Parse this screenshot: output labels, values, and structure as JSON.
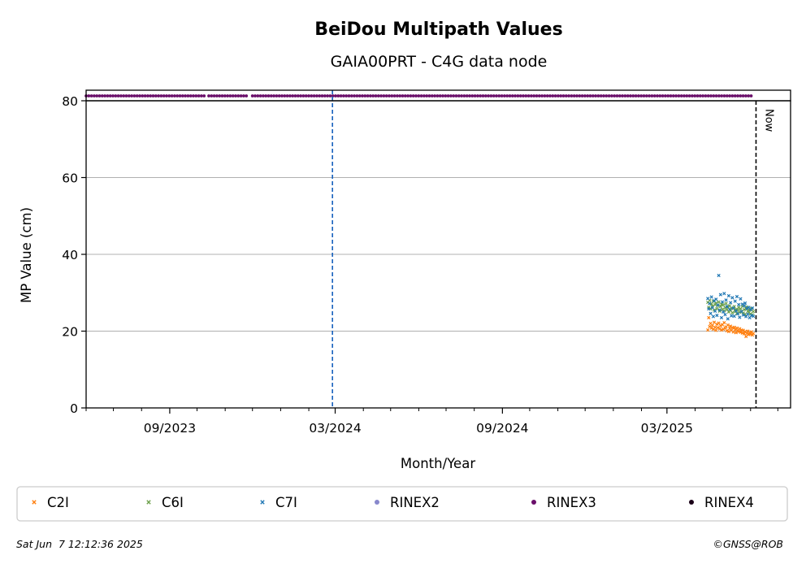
{
  "chart_data": {
    "type": "scatter",
    "title": "BeiDou Multipath Values",
    "subtitle": "GAIA00PRT - C4G data node",
    "xlabel": "Month/Year",
    "ylabel": "MP Value (cm)",
    "xlim": [
      "2023-06-01",
      "2025-07-15"
    ],
    "ylim": [
      0,
      80
    ],
    "yticks": [
      0,
      20,
      40,
      60,
      80
    ],
    "xticks": [
      {
        "date": "2023-09-01",
        "label": "09/2023"
      },
      {
        "date": "2024-03-01",
        "label": "03/2024"
      },
      {
        "date": "2024-09-01",
        "label": "09/2024"
      },
      {
        "date": "2025-03-01",
        "label": "03/2025"
      }
    ],
    "grid": "y",
    "legend_position": "bottom",
    "marked_date": "2024-02-27",
    "now": {
      "date": "2025-06-07",
      "label": "Now"
    },
    "rinex_strip": {
      "series": "RINEX3",
      "ranges": [
        [
          "2023-06-01",
          "2023-10-10"
        ],
        [
          "2023-10-14",
          "2023-11-25"
        ],
        [
          "2023-12-01",
          "2025-06-04"
        ]
      ]
    },
    "series": [
      {
        "name": "C2I",
        "color": "#ff7f0e",
        "marker": "x",
        "points": [
          [
            "2025-04-15",
            20.3
          ],
          [
            "2025-04-16",
            23.5
          ],
          [
            "2025-04-17",
            21.2
          ],
          [
            "2025-04-18",
            22.0
          ],
          [
            "2025-04-19",
            20.8
          ],
          [
            "2025-04-20",
            21.5
          ],
          [
            "2025-04-21",
            20.5
          ],
          [
            "2025-04-22",
            22.3
          ],
          [
            "2025-04-23",
            21.0
          ],
          [
            "2025-04-24",
            20.2
          ],
          [
            "2025-04-25",
            21.8
          ],
          [
            "2025-04-26",
            20.9
          ],
          [
            "2025-04-27",
            22.1
          ],
          [
            "2025-04-28",
            20.6
          ],
          [
            "2025-04-29",
            21.4
          ],
          [
            "2025-04-30",
            20.3
          ],
          [
            "2025-05-01",
            21.7
          ],
          [
            "2025-05-02",
            20.5
          ],
          [
            "2025-05-03",
            22.2
          ],
          [
            "2025-05-04",
            20.8
          ],
          [
            "2025-05-05",
            21.1
          ],
          [
            "2025-05-06",
            20.1
          ],
          [
            "2025-05-07",
            21.6
          ],
          [
            "2025-05-08",
            19.9
          ],
          [
            "2025-05-09",
            20.7
          ],
          [
            "2025-05-10",
            21.3
          ],
          [
            "2025-05-11",
            20.2
          ],
          [
            "2025-05-12",
            20.9
          ],
          [
            "2025-05-13",
            19.8
          ],
          [
            "2025-05-14",
            21.0
          ],
          [
            "2025-05-15",
            20.4
          ],
          [
            "2025-05-16",
            19.6
          ],
          [
            "2025-05-17",
            20.8
          ],
          [
            "2025-05-18",
            20.1
          ],
          [
            "2025-05-19",
            19.9
          ],
          [
            "2025-05-20",
            20.6
          ],
          [
            "2025-05-21",
            19.7
          ],
          [
            "2025-05-22",
            20.3
          ],
          [
            "2025-05-23",
            19.5
          ],
          [
            "2025-05-24",
            20.2
          ],
          [
            "2025-05-25",
            19.3
          ],
          [
            "2025-05-26",
            19.9
          ],
          [
            "2025-05-27",
            18.6
          ],
          [
            "2025-05-28",
            19.4
          ],
          [
            "2025-05-29",
            20.0
          ],
          [
            "2025-05-30",
            19.1
          ],
          [
            "2025-05-31",
            19.6
          ],
          [
            "2025-06-01",
            19.2
          ],
          [
            "2025-06-02",
            19.8
          ],
          [
            "2025-06-03",
            19.0
          ],
          [
            "2025-06-04",
            19.4
          ]
        ]
      },
      {
        "name": "C6I",
        "color": "#6ca04a",
        "marker": "x",
        "points": [
          [
            "2025-04-15",
            27.5
          ],
          [
            "2025-04-16",
            26.2
          ],
          [
            "2025-04-17",
            28.0
          ],
          [
            "2025-04-18",
            25.8
          ],
          [
            "2025-04-19",
            27.1
          ],
          [
            "2025-04-20",
            26.5
          ],
          [
            "2025-04-21",
            27.8
          ],
          [
            "2025-04-22",
            25.5
          ],
          [
            "2025-04-23",
            26.9
          ],
          [
            "2025-04-24",
            27.3
          ],
          [
            "2025-04-25",
            25.9
          ],
          [
            "2025-04-26",
            26.7
          ],
          [
            "2025-04-27",
            27.6
          ],
          [
            "2025-04-28",
            25.2
          ],
          [
            "2025-04-29",
            26.4
          ],
          [
            "2025-04-30",
            27.0
          ],
          [
            "2025-05-01",
            25.7
          ],
          [
            "2025-05-02",
            26.8
          ],
          [
            "2025-05-03",
            25.3
          ],
          [
            "2025-05-04",
            26.1
          ],
          [
            "2025-05-05",
            27.2
          ],
          [
            "2025-05-06",
            25.6
          ],
          [
            "2025-05-07",
            26.3
          ],
          [
            "2025-05-08",
            25.0
          ],
          [
            "2025-05-09",
            26.6
          ],
          [
            "2025-05-10",
            25.4
          ],
          [
            "2025-05-11",
            26.0
          ],
          [
            "2025-05-12",
            24.8
          ],
          [
            "2025-05-13",
            25.9
          ],
          [
            "2025-05-14",
            26.4
          ],
          [
            "2025-05-15",
            25.1
          ],
          [
            "2025-05-16",
            25.7
          ],
          [
            "2025-05-17",
            24.6
          ],
          [
            "2025-05-18",
            25.5
          ],
          [
            "2025-05-19",
            26.2
          ],
          [
            "2025-05-20",
            24.9
          ],
          [
            "2025-05-21",
            25.8
          ],
          [
            "2025-05-22",
            25.0
          ],
          [
            "2025-05-23",
            26.5
          ],
          [
            "2025-05-24",
            24.7
          ],
          [
            "2025-05-25",
            25.6
          ],
          [
            "2025-05-26",
            24.4
          ],
          [
            "2025-05-27",
            25.9
          ],
          [
            "2025-05-28",
            26.3
          ],
          [
            "2025-05-29",
            25.2
          ],
          [
            "2025-05-30",
            24.8
          ],
          [
            "2025-05-31",
            25.5
          ],
          [
            "2025-06-01",
            24.5
          ],
          [
            "2025-06-02",
            25.9
          ],
          [
            "2025-06-03",
            24.2
          ],
          [
            "2025-06-04",
            25.1
          ]
        ]
      },
      {
        "name": "C7I",
        "color": "#1f77b4",
        "marker": "x",
        "points": [
          [
            "2025-04-15",
            28.5
          ],
          [
            "2025-04-16",
            25.8
          ],
          [
            "2025-04-17",
            27.2
          ],
          [
            "2025-04-18",
            24.6
          ],
          [
            "2025-04-19",
            28.9
          ],
          [
            "2025-04-20",
            26.1
          ],
          [
            "2025-04-21",
            23.8
          ],
          [
            "2025-04-22",
            27.9
          ],
          [
            "2025-04-23",
            25.2
          ],
          [
            "2025-04-24",
            28.3
          ],
          [
            "2025-04-25",
            24.1
          ],
          [
            "2025-04-26",
            26.8
          ],
          [
            "2025-04-27",
            34.5
          ],
          [
            "2025-04-28",
            25.5
          ],
          [
            "2025-04-29",
            29.5
          ],
          [
            "2025-04-30",
            23.5
          ],
          [
            "2025-05-01",
            27.6
          ],
          [
            "2025-05-02",
            25.0
          ],
          [
            "2025-05-03",
            29.8
          ],
          [
            "2025-05-04",
            24.3
          ],
          [
            "2025-05-05",
            28.1
          ],
          [
            "2025-05-06",
            26.4
          ],
          [
            "2025-05-07",
            23.2
          ],
          [
            "2025-05-08",
            29.2
          ],
          [
            "2025-05-09",
            25.7
          ],
          [
            "2025-05-10",
            27.4
          ],
          [
            "2025-05-11",
            24.0
          ],
          [
            "2025-05-12",
            28.7
          ],
          [
            "2025-05-13",
            26.0
          ],
          [
            "2025-05-14",
            23.9
          ],
          [
            "2025-05-15",
            27.8
          ],
          [
            "2025-05-16",
            25.3
          ],
          [
            "2025-05-17",
            29.0
          ],
          [
            "2025-05-18",
            24.5
          ],
          [
            "2025-05-19",
            26.9
          ],
          [
            "2025-05-20",
            23.6
          ],
          [
            "2025-05-21",
            28.4
          ],
          [
            "2025-05-22",
            25.1
          ],
          [
            "2025-05-23",
            27.0
          ],
          [
            "2025-05-24",
            24.2
          ],
          [
            "2025-05-25",
            26.6
          ],
          [
            "2025-05-26",
            27.3
          ],
          [
            "2025-05-27",
            23.8
          ],
          [
            "2025-05-28",
            25.9
          ],
          [
            "2025-05-29",
            24.4
          ],
          [
            "2025-05-30",
            26.2
          ],
          [
            "2025-05-31",
            23.5
          ],
          [
            "2025-06-01",
            25.6
          ],
          [
            "2025-06-02",
            24.1
          ],
          [
            "2025-06-03",
            26.0
          ],
          [
            "2025-06-04",
            23.9
          ]
        ]
      }
    ],
    "legend": [
      {
        "name": "C2I",
        "color": "#ff7f0e",
        "marker": "x"
      },
      {
        "name": "C6I",
        "color": "#6ca04a",
        "marker": "x"
      },
      {
        "name": "C7I",
        "color": "#1f77b4",
        "marker": "x"
      },
      {
        "name": "RINEX2",
        "color": "#8888cc",
        "marker": "o"
      },
      {
        "name": "RINEX3",
        "color": "#6a0f6a",
        "marker": "o"
      },
      {
        "name": "RINEX4",
        "color": "#1a0018",
        "marker": "o"
      }
    ]
  },
  "footer": {
    "timestamp": "Sat Jun  7 12:12:36 2025",
    "copyright": "©GNSS@ROB"
  }
}
